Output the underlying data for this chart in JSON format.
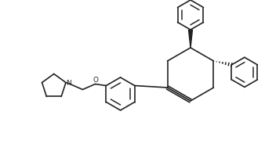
{
  "background_color": "#ffffff",
  "line_color": "#222222",
  "line_width": 1.2,
  "figsize": [
    3.38,
    1.88
  ],
  "dpi": 100,
  "xlim": [
    0,
    338
  ],
  "ylim": [
    0,
    188
  ]
}
